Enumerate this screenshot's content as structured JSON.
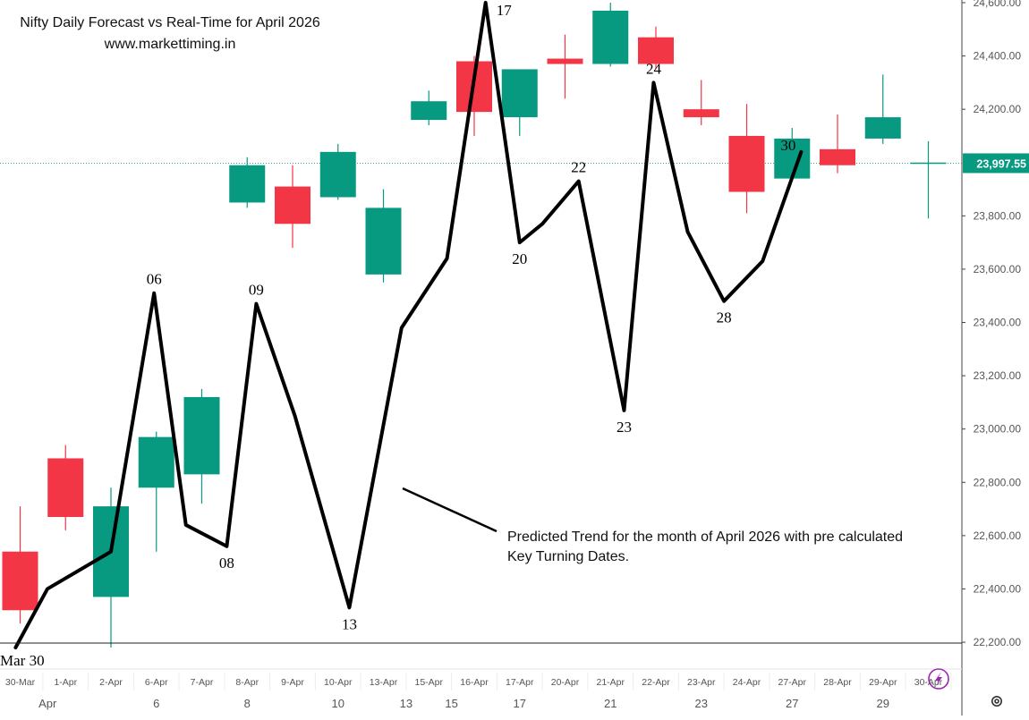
{
  "header": {
    "title": "Nifty Daily Forecast vs Real-Time for April 2026",
    "website": "www.markettiming.in"
  },
  "annotation": {
    "text_line1": "Predicted Trend for the month of April 2026 with pre calculated",
    "text_line2": "Key Turning Dates."
  },
  "corner_label": "Mar 30",
  "colors": {
    "up": "#089981",
    "down": "#f23645",
    "trend": "#000000",
    "price_tag": "#089981",
    "axis_text": "#555555",
    "grid_dotted": "#26a69a",
    "lightning": "#9c27b0"
  },
  "icons": {
    "settings": "gear-icon",
    "lightning": "lightning-icon"
  },
  "chart_data": {
    "type": "candlestick",
    "ylim": [
      22180,
      24610
    ],
    "y_ticks": [
      "22,200.00",
      "22,400.00",
      "22,600.00",
      "22,800.00",
      "23,000.00",
      "23,200.00",
      "23,400.00",
      "23,600.00"
    ],
    "y_ticks_values": [
      22200,
      22400,
      22600,
      22800,
      23000,
      23200,
      23400,
      23600
    ],
    "y_ticks_upper": [
      "23,800.00",
      "24,000.00",
      "24,200.00",
      "24,400.00",
      "24,600.00"
    ],
    "y_ticks_upper_values": [
      23800,
      24000,
      24200,
      24400,
      24600
    ],
    "current_price": 23997.55,
    "current_price_label": "23,997.55",
    "x_categories": [
      "30-Mar",
      "1-Apr",
      "2-Apr",
      "6-Apr",
      "7-Apr",
      "8-Apr",
      "9-Apr",
      "10-Apr",
      "13-Apr",
      "15-Apr",
      "16-Apr",
      "17-Apr",
      "20-Apr",
      "21-Apr",
      "22-Apr",
      "23-Apr",
      "24-Apr",
      "27-Apr",
      "28-Apr",
      "29-Apr",
      "30-Apr"
    ],
    "x_bottom_labels": [
      "Apr",
      "6",
      "8",
      "10",
      "13",
      "15",
      "17",
      "21",
      "23",
      "27",
      "29"
    ],
    "x_bottom_label_index": [
      1.0,
      3.0,
      5.0,
      7.0,
      8.5,
      9.5,
      11.0,
      13.0,
      15.0,
      17.0,
      19.0
    ],
    "candles": [
      {
        "date": "30-Mar",
        "open": 22540,
        "high": 22710,
        "low": 22270,
        "close": 22320
      },
      {
        "date": "1-Apr",
        "open": 22890,
        "high": 22940,
        "low": 22620,
        "close": 22670
      },
      {
        "date": "2-Apr",
        "open": 22370,
        "high": 22780,
        "low": 22180,
        "close": 22710
      },
      {
        "date": "6-Apr",
        "open": 22780,
        "high": 22990,
        "low": 22540,
        "close": 22970
      },
      {
        "date": "7-Apr",
        "open": 22830,
        "high": 23150,
        "low": 22720,
        "close": 23120
      },
      {
        "date": "8-Apr",
        "open": 23850,
        "high": 24020,
        "low": 23830,
        "close": 23990
      },
      {
        "date": "9-Apr",
        "open": 23910,
        "high": 23990,
        "low": 23680,
        "close": 23770
      },
      {
        "date": "10-Apr",
        "open": 23870,
        "high": 24070,
        "low": 23860,
        "close": 24040
      },
      {
        "date": "13-Apr",
        "open": 23580,
        "high": 23900,
        "low": 23550,
        "close": 23830
      },
      {
        "date": "15-Apr",
        "open": 24160,
        "high": 24270,
        "low": 24140,
        "close": 24230
      },
      {
        "date": "16-Apr",
        "open": 24380,
        "high": 24400,
        "low": 24100,
        "close": 24190
      },
      {
        "date": "17-Apr",
        "open": 24170,
        "high": 24350,
        "low": 24100,
        "close": 24350
      },
      {
        "date": "20-Apr",
        "open": 24390,
        "high": 24480,
        "low": 24240,
        "close": 24370
      },
      {
        "date": "21-Apr",
        "open": 24370,
        "high": 24600,
        "low": 24360,
        "close": 24570
      },
      {
        "date": "22-Apr",
        "open": 24470,
        "high": 24510,
        "low": 24350,
        "close": 24370
      },
      {
        "date": "23-Apr",
        "open": 24200,
        "high": 24310,
        "low": 24140,
        "close": 24170
      },
      {
        "date": "24-Apr",
        "open": 24100,
        "high": 24220,
        "low": 23810,
        "close": 23890
      },
      {
        "date": "27-Apr",
        "open": 23940,
        "high": 24130,
        "low": 23930,
        "close": 24090
      },
      {
        "date": "28-Apr",
        "open": 24050,
        "high": 24180,
        "low": 23960,
        "close": 23990
      },
      {
        "date": "29-Apr",
        "open": 24090,
        "high": 24330,
        "low": 24070,
        "close": 24170
      },
      {
        "date": "30-Apr",
        "open": 24000,
        "high": 24080,
        "low": 23790,
        "close": 24000
      }
    ],
    "trend_line": [
      {
        "x": -0.1,
        "y": 22180
      },
      {
        "x": 0.6,
        "y": 22400
      },
      {
        "x": 2.0,
        "y": 22540
      },
      {
        "x": 2.95,
        "y": 23510
      },
      {
        "x": 3.65,
        "y": 22640
      },
      {
        "x": 4.55,
        "y": 22560
      },
      {
        "x": 5.2,
        "y": 23470
      },
      {
        "x": 6.05,
        "y": 23050
      },
      {
        "x": 7.25,
        "y": 22330
      },
      {
        "x": 8.4,
        "y": 23380
      },
      {
        "x": 9.4,
        "y": 23640
      },
      {
        "x": 10.25,
        "y": 24600
      },
      {
        "x": 11.0,
        "y": 23700
      },
      {
        "x": 11.5,
        "y": 23770
      },
      {
        "x": 12.3,
        "y": 23930
      },
      {
        "x": 13.3,
        "y": 23070
      },
      {
        "x": 13.95,
        "y": 24300
      },
      {
        "x": 14.7,
        "y": 23740
      },
      {
        "x": 15.5,
        "y": 23480
      },
      {
        "x": 16.35,
        "y": 23630
      },
      {
        "x": 17.2,
        "y": 24040
      }
    ],
    "turning_labels": [
      {
        "text": "06",
        "x": 2.95,
        "y": 23510,
        "pos": "above"
      },
      {
        "text": "08",
        "x": 4.55,
        "y": 22560,
        "pos": "below"
      },
      {
        "text": "09",
        "x": 5.2,
        "y": 23470,
        "pos": "above"
      },
      {
        "text": "13",
        "x": 7.25,
        "y": 22330,
        "pos": "below"
      },
      {
        "text": "17",
        "x": 10.25,
        "y": 24600,
        "pos": "right"
      },
      {
        "text": "20",
        "x": 11.0,
        "y": 23700,
        "pos": "below"
      },
      {
        "text": "22",
        "x": 12.3,
        "y": 23930,
        "pos": "above"
      },
      {
        "text": "23",
        "x": 13.3,
        "y": 23070,
        "pos": "below"
      },
      {
        "text": "24",
        "x": 13.95,
        "y": 24300,
        "pos": "above"
      },
      {
        "text": "28",
        "x": 15.5,
        "y": 23480,
        "pos": "below"
      },
      {
        "text": "30",
        "x": 17.2,
        "y": 24040,
        "pos": "left"
      }
    ]
  }
}
